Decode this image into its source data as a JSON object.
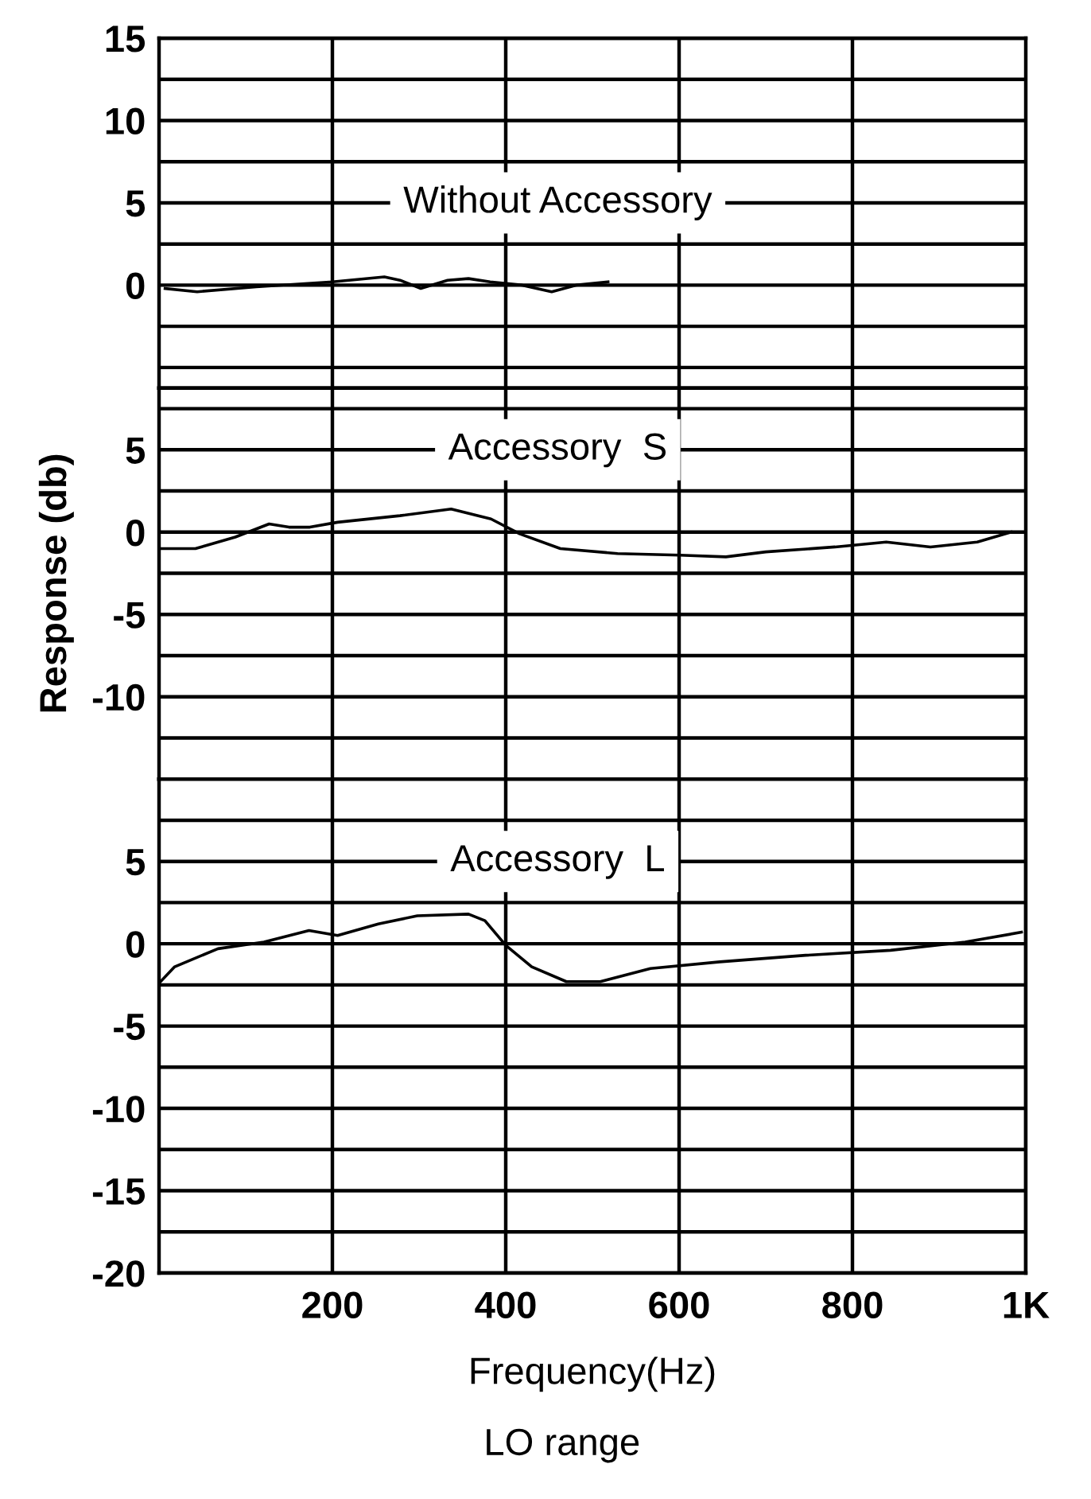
{
  "chart_data": [
    {
      "type": "line",
      "title": "Without Accessory",
      "xlim": [
        0,
        1000
      ],
      "xticks": [
        200,
        400,
        600,
        800
      ],
      "ylim": [
        -6.25,
        15
      ],
      "yticks": [
        {
          "value": -5,
          "label": null
        },
        {
          "value": -2.5,
          "label": null
        },
        0,
        {
          "value": 2.5,
          "label": null
        },
        5,
        {
          "value": 7.5,
          "label": null
        },
        10,
        {
          "value": 12.5,
          "label": null
        },
        15
      ],
      "grid": true,
      "tick_labels": "y",
      "line_style": "solid",
      "marker": "none",
      "series": [
        {
          "color": "#000000",
          "x": [
            7,
            44,
            112,
            200,
            260,
            278,
            302,
            333,
            357,
            382,
            419,
            453,
            481,
            518
          ],
          "values": [
            -0.2,
            -0.4,
            -0.1,
            0.2,
            0.5,
            0.3,
            -0.2,
            0.3,
            0.4,
            0.2,
            0,
            -0.4,
            0,
            0.2
          ]
        }
      ]
    },
    {
      "type": "line",
      "title": "Accessory  S",
      "ylabel": "Response (db)",
      "xlim": [
        0,
        1000
      ],
      "xticks": [
        200,
        400,
        600,
        800
      ],
      "ylim": [
        -15,
        8.75
      ],
      "yticks": [
        {
          "value": -12.5,
          "label": null
        },
        -10,
        {
          "value": -7.5,
          "label": null
        },
        -5,
        {
          "value": -2.5,
          "label": null
        },
        0,
        {
          "value": 2.5,
          "label": null
        },
        5,
        {
          "value": 7.5,
          "label": null
        }
      ],
      "grid": true,
      "tick_labels": "y",
      "line_style": "solid",
      "marker": "none",
      "series": [
        {
          "color": "#000000",
          "x": [
            0,
            42,
            88,
            127,
            150,
            174,
            206,
            278,
            337,
            383,
            416,
            463,
            529,
            601,
            654,
            700,
            780,
            839,
            890,
            944,
            983
          ],
          "values": [
            -1.0,
            -1.0,
            -0.3,
            0.5,
            0.3,
            0.3,
            0.6,
            1.0,
            1.4,
            0.8,
            -0.1,
            -1.0,
            -1.3,
            -1.4,
            -1.5,
            -1.2,
            -0.9,
            -0.6,
            -0.9,
            -0.6,
            0.0
          ]
        }
      ]
    },
    {
      "type": "line",
      "title": "Accessory  L",
      "xlabel": "Frequency(Hz)",
      "annotations": [
        "LO range"
      ],
      "xlim": [
        0,
        1000
      ],
      "xticks": [
        200,
        400,
        600,
        800,
        {
          "value": 1000,
          "label": "1K"
        }
      ],
      "ylim": [
        -20,
        10
      ],
      "yticks": [
        -20,
        {
          "value": -17.5,
          "label": null
        },
        -15,
        {
          "value": -12.5,
          "label": null
        },
        -10,
        {
          "value": -7.5,
          "label": null
        },
        -5,
        {
          "value": -2.5,
          "label": null
        },
        0,
        {
          "value": 2.5,
          "label": null
        },
        5,
        {
          "value": 7.5,
          "label": null
        }
      ],
      "grid": true,
      "line_style": "solid",
      "marker": "none",
      "series": [
        {
          "color": "#000000",
          "x": [
            0,
            18,
            68,
            121,
            173,
            206,
            253,
            298,
            357,
            376,
            400,
            430,
            470,
            509,
            567,
            647,
            746,
            844,
            930,
            995
          ],
          "values": [
            -2.4,
            -1.4,
            -0.3,
            0.1,
            0.8,
            0.5,
            1.2,
            1.7,
            1.8,
            1.4,
            -0.1,
            -1.4,
            -2.3,
            -2.3,
            -1.5,
            -1.1,
            -0.7,
            -0.4,
            0.1,
            0.7
          ]
        }
      ]
    }
  ]
}
